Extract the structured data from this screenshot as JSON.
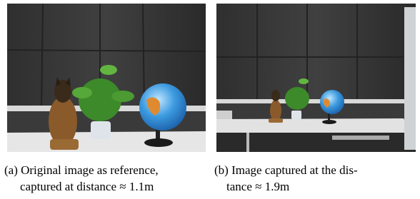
{
  "figure": {
    "subfigures": [
      {
        "caption_lines": [
          "(a) Original image as reference,",
          "captured at distance ≈ 1.1m"
        ]
      },
      {
        "caption_lines": [
          "(b) Image captured at the dis-",
          "tance ≈ 1.9m"
        ]
      }
    ]
  }
}
